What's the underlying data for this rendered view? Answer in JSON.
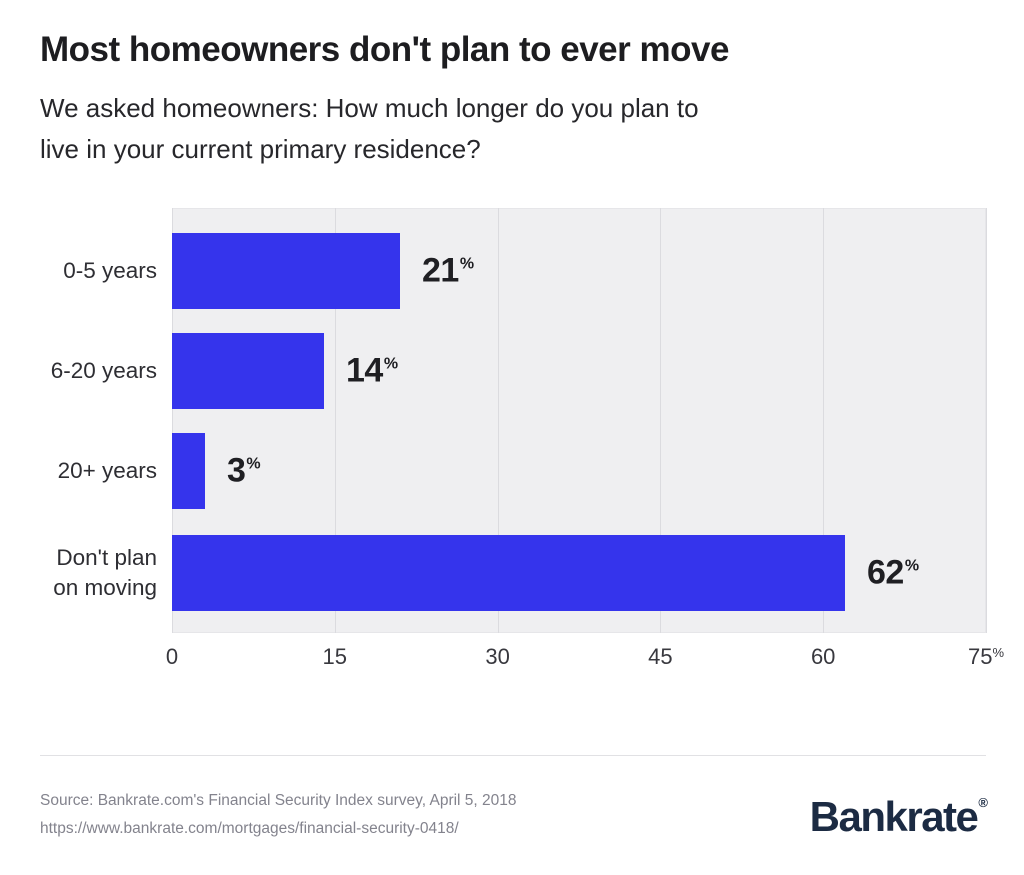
{
  "header": {
    "title": "Most homeowners don't plan to ever move",
    "subtitle": "We asked homeowners: How much longer do you plan to\nlive in your current primary residence?"
  },
  "chart_data": {
    "type": "bar",
    "orientation": "horizontal",
    "title": "Most homeowners don't plan to ever move",
    "categories": [
      "0-5 years",
      "6-20 years",
      "20+ years",
      "Don't plan\non moving"
    ],
    "values": [
      21,
      14,
      3,
      62
    ],
    "value_suffix": "%",
    "xlim": [
      0,
      75
    ],
    "x_ticks": [
      0,
      15,
      30,
      45,
      60,
      75
    ],
    "axis_unit": "%",
    "grid": true,
    "legend": "none",
    "colors": {
      "bar": "#3534EC",
      "plot_background": "#EFEFF1",
      "gridline": "#DBDBDF",
      "value_label": "#1f1f23",
      "category_label": "#2e2e33",
      "tick_label": "#38383e"
    }
  },
  "footer": {
    "source_line1": "Source: Bankrate.com's Financial Security Index survey, April 5, 2018",
    "source_line2": "https://www.bankrate.com/mortgages/financial-security-0418/",
    "logo_text": "Bankrate",
    "logo_registered": "®"
  }
}
